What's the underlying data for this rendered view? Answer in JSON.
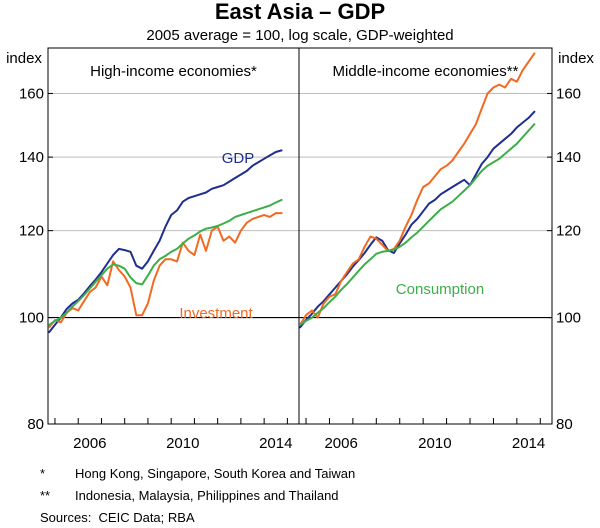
{
  "chart_data": {
    "type": "line",
    "title": "East Asia – GDP",
    "subtitle": "2005 average = 100, log scale, GDP-weighted",
    "y_unit_left": "index",
    "y_unit_right": "index",
    "y_scale": "log",
    "ylim": [
      80,
      176
    ],
    "y_ticks": [
      80,
      100,
      120,
      140,
      160
    ],
    "x_ticks": [
      2006,
      2010,
      2014
    ],
    "xlim": [
      2004.7,
      2015.5
    ],
    "colors": {
      "gdp": "#1f2f8f",
      "investment": "#f26a21",
      "consumption": "#3dae49"
    },
    "panels": [
      {
        "title": "High-income economies*",
        "series": [
          {
            "name": "GDP",
            "label": "GDP",
            "color": "#1f2f8f",
            "x": [
              2004.75,
              2005.0,
              2005.25,
              2005.5,
              2005.75,
              2006.0,
              2006.25,
              2006.5,
              2006.75,
              2007.0,
              2007.25,
              2007.5,
              2007.75,
              2008.0,
              2008.25,
              2008.5,
              2008.75,
              2009.0,
              2009.25,
              2009.5,
              2009.75,
              2010.0,
              2010.25,
              2010.5,
              2010.75,
              2011.0,
              2011.25,
              2011.5,
              2011.75,
              2012.0,
              2012.25,
              2012.5,
              2012.75,
              2013.0,
              2013.25,
              2013.5,
              2013.75,
              2014.0,
              2014.25,
              2014.5,
              2014.75
            ],
            "values": [
              97.0,
              98.5,
              100.0,
              101.8,
              103.0,
              103.8,
              105.2,
              106.8,
              108.3,
              110.0,
              112.0,
              114.0,
              115.5,
              115.2,
              114.8,
              111.5,
              110.8,
              112.5,
              115.0,
              117.5,
              121.0,
              124.0,
              125.2,
              127.5,
              128.5,
              129.0,
              129.5,
              130.0,
              131.0,
              131.5,
              132.0,
              133.0,
              134.0,
              135.0,
              136.0,
              137.5,
              138.5,
              139.5,
              140.5,
              141.5,
              142.0
            ]
          },
          {
            "name": "Investment",
            "label": "Investment",
            "color": "#f26a21",
            "x": [
              2004.75,
              2005.0,
              2005.25,
              2005.5,
              2005.75,
              2006.0,
              2006.25,
              2006.5,
              2006.75,
              2007.0,
              2007.25,
              2007.5,
              2007.75,
              2008.0,
              2008.25,
              2008.5,
              2008.75,
              2009.0,
              2009.25,
              2009.5,
              2009.75,
              2010.0,
              2010.25,
              2010.5,
              2010.75,
              2011.0,
              2011.25,
              2011.5,
              2011.75,
              2012.0,
              2012.25,
              2012.5,
              2012.75,
              2013.0,
              2013.25,
              2013.5,
              2013.75,
              2014.0,
              2014.25,
              2014.5,
              2014.75
            ],
            "values": [
              98.0,
              99.5,
              99.0,
              101.0,
              102.0,
              101.5,
              103.5,
              105.5,
              106.5,
              109.0,
              107.0,
              112.5,
              110.5,
              109.0,
              106.5,
              100.5,
              100.5,
              103.0,
              108.0,
              111.5,
              113.0,
              113.0,
              112.5,
              117.0,
              115.0,
              114.0,
              119.0,
              115.0,
              120.0,
              121.0,
              117.5,
              118.5,
              117.0,
              120.0,
              122.0,
              123.0,
              123.5,
              124.0,
              123.5,
              124.5,
              124.5
            ]
          },
          {
            "name": "Consumption",
            "color": "#3dae49",
            "x": [
              2004.75,
              2005.0,
              2005.25,
              2005.5,
              2005.75,
              2006.0,
              2006.25,
              2006.5,
              2006.75,
              2007.0,
              2007.25,
              2007.5,
              2007.75,
              2008.0,
              2008.25,
              2008.5,
              2008.75,
              2009.0,
              2009.25,
              2009.5,
              2009.75,
              2010.0,
              2010.25,
              2010.5,
              2010.75,
              2011.0,
              2011.25,
              2011.5,
              2011.75,
              2012.0,
              2012.25,
              2012.5,
              2012.75,
              2013.0,
              2013.25,
              2013.5,
              2013.75,
              2014.0,
              2014.25,
              2014.5,
              2014.75
            ],
            "values": [
              98.5,
              99.3,
              100.0,
              101.0,
              102.3,
              103.5,
              104.8,
              106.3,
              107.8,
              109.3,
              110.8,
              111.8,
              111.5,
              110.8,
              108.8,
              107.5,
              107.2,
              109.2,
              111.5,
              113.0,
              113.8,
              114.8,
              115.5,
              116.8,
              118.0,
              118.8,
              119.8,
              120.5,
              120.8,
              121.2,
              121.8,
              122.5,
              123.5,
              124.0,
              124.5,
              125.0,
              125.5,
              126.0,
              126.5,
              127.3,
              128.0
            ]
          }
        ]
      },
      {
        "title": "Middle-income economies**",
        "series": [
          {
            "name": "GDP",
            "color": "#1f2f8f",
            "x": [
              2004.75,
              2005.0,
              2005.25,
              2005.5,
              2005.75,
              2006.0,
              2006.25,
              2006.5,
              2006.75,
              2007.0,
              2007.25,
              2007.5,
              2007.75,
              2008.0,
              2008.25,
              2008.5,
              2008.75,
              2009.0,
              2009.25,
              2009.5,
              2009.75,
              2010.0,
              2010.25,
              2010.5,
              2010.75,
              2011.0,
              2011.25,
              2011.5,
              2011.75,
              2012.0,
              2012.25,
              2012.5,
              2012.75,
              2013.0,
              2013.25,
              2013.5,
              2013.75,
              2014.0,
              2014.25,
              2014.5,
              2014.75
            ],
            "values": [
              98.0,
              99.5,
              100.8,
              102.3,
              103.5,
              105.0,
              106.5,
              108.0,
              109.5,
              111.3,
              112.8,
              114.5,
              116.5,
              118.3,
              117.5,
              115.2,
              114.5,
              116.8,
              119.0,
              121.5,
              123.0,
              125.0,
              127.0,
              128.0,
              129.5,
              130.5,
              131.5,
              132.5,
              133.5,
              132.0,
              135.0,
              138.0,
              140.0,
              142.5,
              144.0,
              145.5,
              147.0,
              149.0,
              150.5,
              152.0,
              154.0
            ]
          },
          {
            "name": "Investment",
            "color": "#f26a21",
            "x": [
              2004.75,
              2005.0,
              2005.25,
              2005.5,
              2005.75,
              2006.0,
              2006.25,
              2006.5,
              2006.75,
              2007.0,
              2007.25,
              2007.5,
              2007.75,
              2008.0,
              2008.25,
              2008.5,
              2008.75,
              2009.0,
              2009.25,
              2009.5,
              2009.75,
              2010.0,
              2010.25,
              2010.5,
              2010.75,
              2011.0,
              2011.25,
              2011.5,
              2011.75,
              2012.0,
              2012.25,
              2012.5,
              2012.75,
              2013.0,
              2013.25,
              2013.5,
              2013.75,
              2014.0,
              2014.25,
              2014.5,
              2014.75
            ],
            "values": [
              98.5,
              100.5,
              101.5,
              100.0,
              103.0,
              104.5,
              105.0,
              108.0,
              110.0,
              112.0,
              113.0,
              116.0,
              118.5,
              118.0,
              116.5,
              115.0,
              115.5,
              117.5,
              121.0,
              124.0,
              128.0,
              131.5,
              132.5,
              134.5,
              136.5,
              137.5,
              139.0,
              141.5,
              144.0,
              147.0,
              150.0,
              155.0,
              160.0,
              162.0,
              163.0,
              162.0,
              165.0,
              164.0,
              168.0,
              171.0,
              174.0
            ]
          },
          {
            "name": "Consumption",
            "label": "Consumption",
            "color": "#3dae49",
            "x": [
              2004.75,
              2005.0,
              2005.25,
              2005.5,
              2005.75,
              2006.0,
              2006.25,
              2006.5,
              2006.75,
              2007.0,
              2007.25,
              2007.5,
              2007.75,
              2008.0,
              2008.25,
              2008.5,
              2008.75,
              2009.0,
              2009.25,
              2009.5,
              2009.75,
              2010.0,
              2010.25,
              2010.5,
              2010.75,
              2011.0,
              2011.25,
              2011.5,
              2011.75,
              2012.0,
              2012.25,
              2012.5,
              2012.75,
              2013.0,
              2013.25,
              2013.5,
              2013.75,
              2014.0,
              2014.25,
              2014.5,
              2014.75
            ],
            "values": [
              98.5,
              99.3,
              100.0,
              101.0,
              102.0,
              103.3,
              104.5,
              106.0,
              107.3,
              108.8,
              110.3,
              111.8,
              113.0,
              114.3,
              114.8,
              115.0,
              115.3,
              116.0,
              117.0,
              118.3,
              119.5,
              121.0,
              122.5,
              124.0,
              125.5,
              126.5,
              127.5,
              129.0,
              130.5,
              132.0,
              134.0,
              136.0,
              137.5,
              138.5,
              139.5,
              141.0,
              142.5,
              144.0,
              146.0,
              148.0,
              150.0
            ]
          }
        ]
      }
    ],
    "footnotes": [
      {
        "marker": "*",
        "text": "Hong Kong, Singapore, South Korea and Taiwan"
      },
      {
        "marker": "**",
        "text": "Indonesia, Malaysia, Philippines and Thailand"
      }
    ],
    "sources": "Sources:  CEIC Data; RBA"
  }
}
